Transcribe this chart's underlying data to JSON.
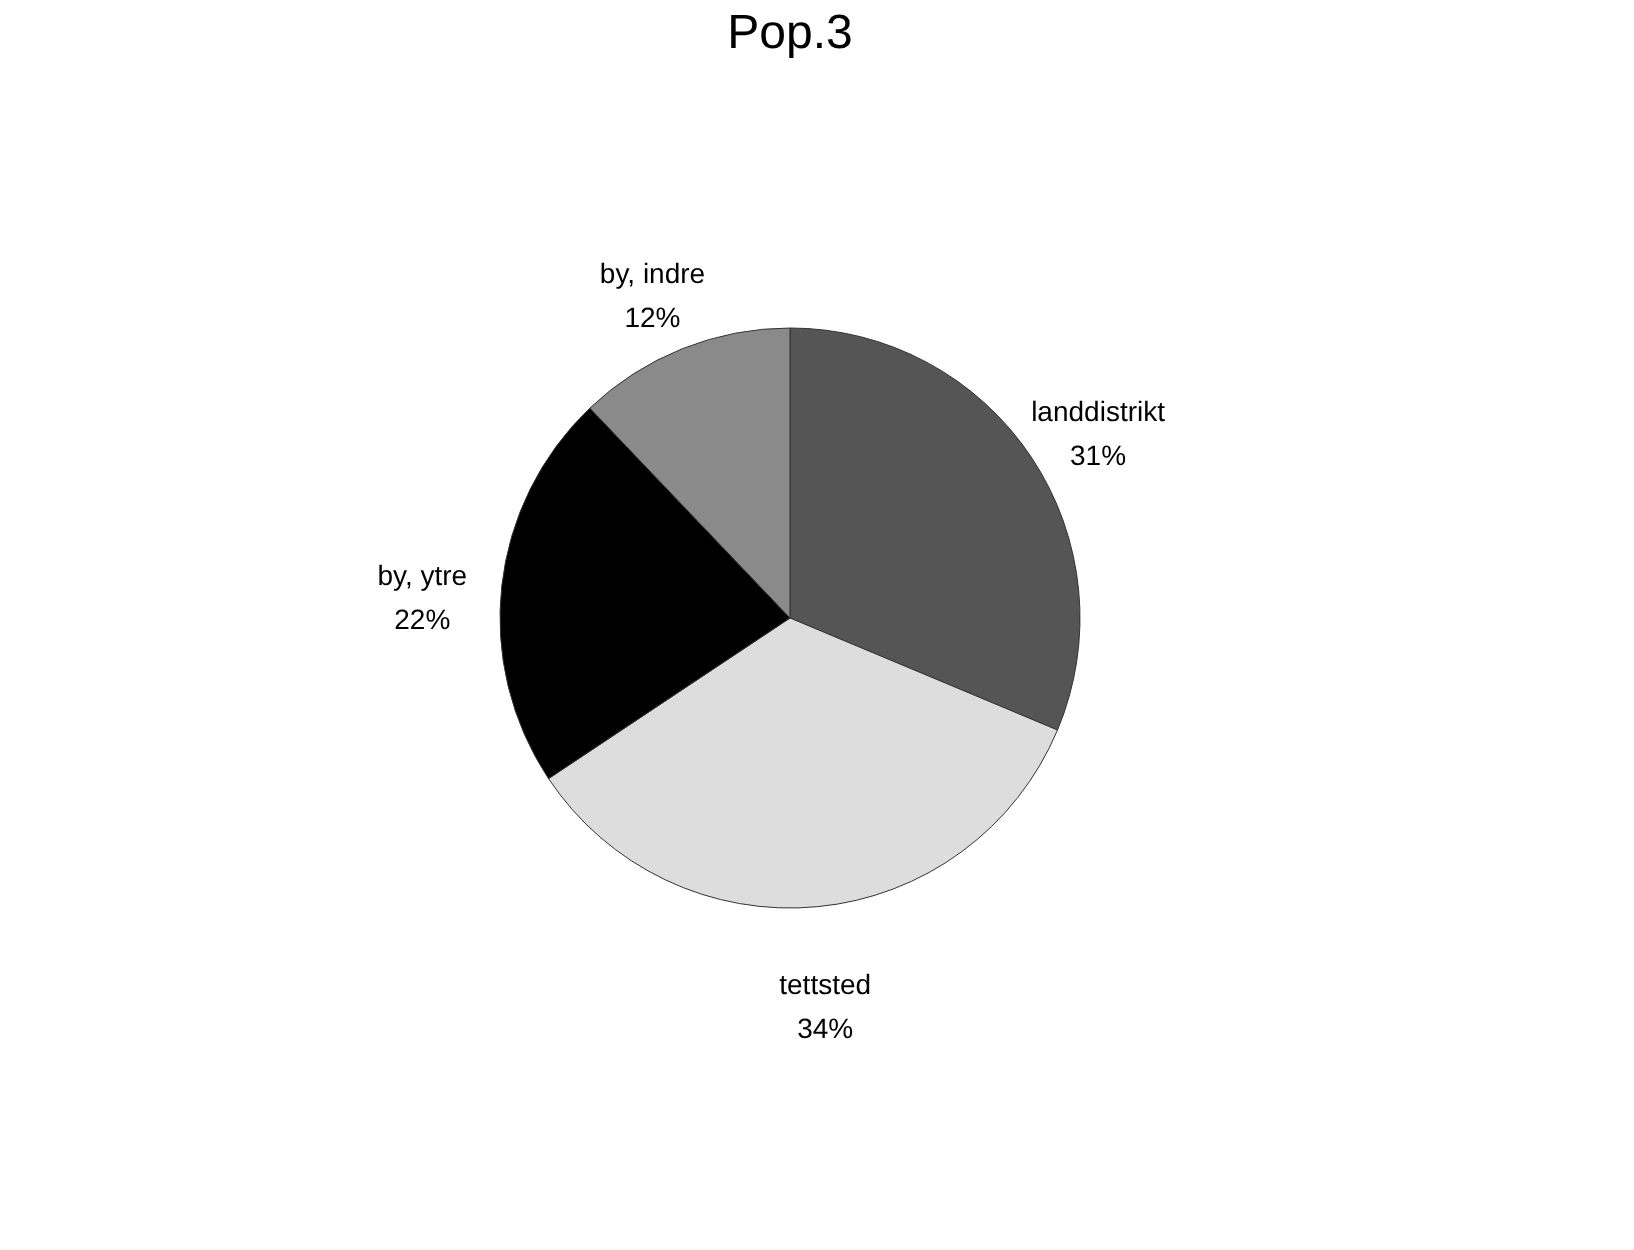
{
  "chart_data": {
    "type": "pie",
    "title": "Pop.3",
    "categories": [
      "landdistrikt",
      "tettsted",
      "by, ytre",
      "by, indre"
    ],
    "values": [
      31,
      34,
      22,
      12
    ],
    "colors": [
      "#555555",
      "#dddddd",
      "#000000",
      "#8a8a8a"
    ],
    "value_labels": [
      "31%",
      "34%",
      "22%",
      "12%"
    ],
    "legend": false
  }
}
